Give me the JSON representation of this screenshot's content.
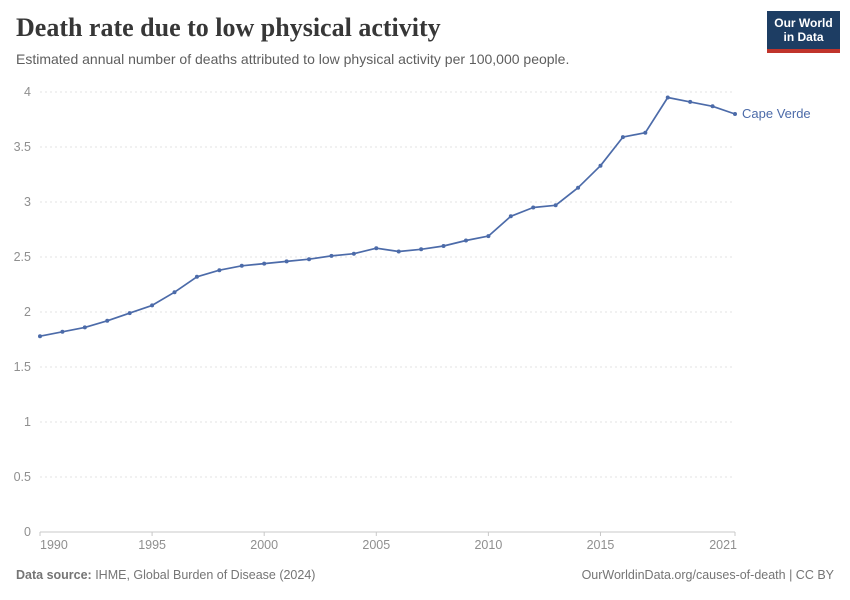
{
  "chart_data": {
    "type": "line",
    "title": "Death rate due to low physical activity",
    "subtitle": "Estimated annual number of deaths attributed to low physical activity per 100,000 people.",
    "x": [
      1990,
      1991,
      1992,
      1993,
      1994,
      1995,
      1996,
      1997,
      1998,
      1999,
      2000,
      2001,
      2002,
      2003,
      2004,
      2005,
      2006,
      2007,
      2008,
      2009,
      2010,
      2011,
      2012,
      2013,
      2014,
      2015,
      2016,
      2017,
      2018,
      2019,
      2020,
      2021
    ],
    "series": [
      {
        "name": "Cape Verde",
        "color": "#4c6ba9",
        "values": [
          1.78,
          1.82,
          1.86,
          1.92,
          1.99,
          2.06,
          2.18,
          2.32,
          2.38,
          2.42,
          2.44,
          2.46,
          2.48,
          2.51,
          2.53,
          2.58,
          2.55,
          2.57,
          2.6,
          2.65,
          2.69,
          2.87,
          2.95,
          2.97,
          3.13,
          3.33,
          3.59,
          3.63,
          3.95,
          3.91,
          3.87,
          3.8
        ]
      }
    ],
    "xlabel": "",
    "ylabel": "",
    "xlim": [
      1990,
      2021
    ],
    "ylim": [
      0,
      4
    ],
    "x_ticks": [
      1990,
      1995,
      2000,
      2005,
      2010,
      2015,
      2021
    ],
    "y_ticks": [
      0,
      0.5,
      1,
      1.5,
      2,
      2.5,
      3,
      3.5,
      4
    ],
    "y_tick_labels": [
      "0",
      "0.5",
      "1",
      "1.5",
      "2",
      "2.5",
      "3",
      "3.5",
      "4"
    ],
    "grid": "horizontal-dashed",
    "legend_position": "end-of-line-label",
    "entity_label": "Cape Verde"
  },
  "header": {
    "logo": {
      "line1": "Our World",
      "line2": "in Data"
    }
  },
  "footer": {
    "source_prefix": "Data source:",
    "source_text": " IHME, Global Burden of Disease (2024)",
    "link_text": "OurWorldinData.org/causes-of-death | CC BY"
  },
  "colors": {
    "line": "#4c6ba9",
    "grid": "#e3e3e3",
    "axis": "#c8c8c8",
    "tick_label": "#8f8f8f",
    "title": "#373737",
    "subtitle": "#5e5e5e",
    "footer": "#757575",
    "logo_bg": "#1d3d63",
    "logo_stripe": "#c0342b"
  }
}
